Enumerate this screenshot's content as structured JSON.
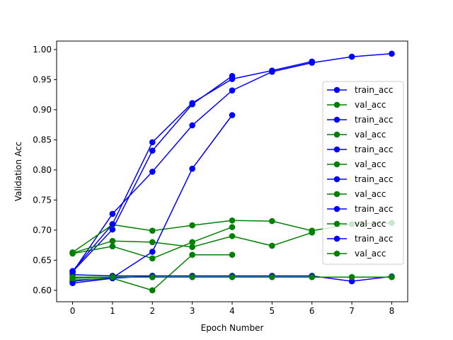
{
  "chart_data": {
    "type": "line",
    "xlabel": "Epoch Number",
    "ylabel": "Validation Acc",
    "xlim": [
      -0.4,
      8.4
    ],
    "ylim": [
      0.581,
      1.014
    ],
    "xticks": [
      0,
      1,
      2,
      3,
      4,
      5,
      6,
      7,
      8
    ],
    "yticks": [
      0.6,
      0.65,
      0.7,
      0.75,
      0.8,
      0.85,
      0.9,
      0.95,
      1.0
    ],
    "grid": false,
    "legend_position": "center-right",
    "colors": {
      "train_acc": "#0000ff",
      "val_acc": "#008000"
    },
    "series": [
      {
        "name": "train_acc",
        "color": "#0000ff",
        "x": [
          0,
          1,
          2,
          3,
          4
        ],
        "y": [
          0.631,
          0.701,
          0.832,
          0.909,
          0.956
        ]
      },
      {
        "name": "val_acc",
        "color": "#008000",
        "x": [
          0,
          1,
          2,
          3,
          4
        ],
        "y": [
          0.661,
          0.673,
          0.653,
          0.68,
          0.705
        ]
      },
      {
        "name": "train_acc",
        "color": "#0000ff",
        "x": [
          0,
          1,
          2,
          3,
          4,
          5,
          6,
          7,
          8
        ],
        "y": [
          0.63,
          0.727,
          0.797,
          0.874,
          0.932,
          0.963,
          0.978,
          0.988,
          0.993
        ]
      },
      {
        "name": "val_acc",
        "color": "#008000",
        "x": [
          0,
          1,
          2,
          3,
          4,
          5,
          6,
          7,
          8
        ],
        "y": [
          0.663,
          0.709,
          0.699,
          0.708,
          0.716,
          0.715,
          0.699,
          0.71,
          0.712
        ]
      },
      {
        "name": "train_acc",
        "color": "#0000ff",
        "x": [
          0,
          1,
          2,
          3,
          4,
          5,
          6
        ],
        "y": [
          0.632,
          0.71,
          0.846,
          0.911,
          0.951,
          0.965,
          0.98
        ]
      },
      {
        "name": "val_acc",
        "color": "#008000",
        "x": [
          0,
          1,
          2,
          3,
          4,
          5,
          6
        ],
        "y": [
          0.662,
          0.682,
          0.68,
          0.672,
          0.69,
          0.674,
          0.696
        ]
      },
      {
        "name": "train_acc",
        "color": "#0000ff",
        "x": [
          0,
          1,
          2,
          3,
          4
        ],
        "y": [
          0.615,
          0.621,
          0.664,
          0.802,
          0.891
        ]
      },
      {
        "name": "val_acc",
        "color": "#008000",
        "x": [
          0,
          1,
          2,
          3,
          4
        ],
        "y": [
          0.617,
          0.62,
          0.6,
          0.659,
          0.659
        ]
      },
      {
        "name": "train_acc",
        "color": "#0000ff",
        "x": [
          0,
          1,
          2,
          3,
          4,
          5,
          6,
          7,
          8
        ],
        "y": [
          0.626,
          0.624,
          0.624,
          0.624,
          0.624,
          0.624,
          0.624,
          0.615,
          0.623
        ]
      },
      {
        "name": "val_acc",
        "color": "#008000",
        "x": [
          0,
          1,
          2,
          3,
          4,
          5,
          6,
          7,
          8
        ],
        "y": [
          0.622,
          0.622,
          0.622,
          0.622,
          0.622,
          0.622,
          0.622,
          0.622,
          0.622
        ]
      },
      {
        "name": "train_acc",
        "color": "#0000ff",
        "x": [
          0,
          1,
          2
        ],
        "y": [
          0.612,
          0.62,
          0.624
        ]
      },
      {
        "name": "val_acc",
        "color": "#008000",
        "x": [
          0,
          1,
          2
        ],
        "y": [
          0.62,
          0.622,
          0.622
        ]
      }
    ]
  }
}
